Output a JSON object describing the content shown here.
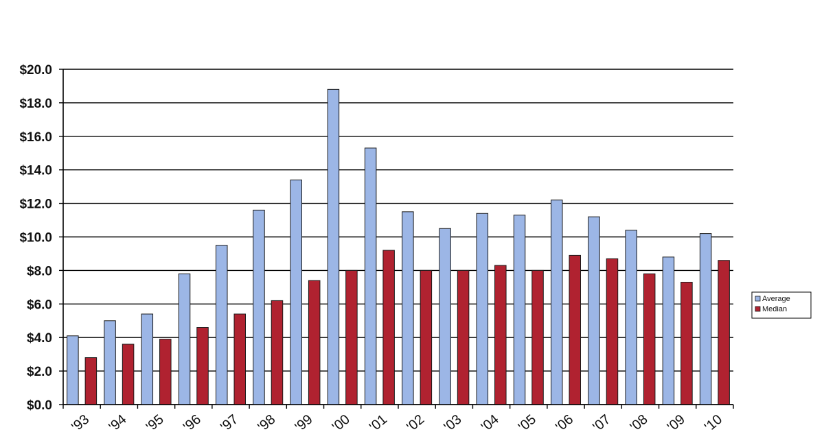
{
  "chart_data": {
    "type": "bar",
    "title": "",
    "categories": [
      "'93",
      "'94",
      "'95",
      "'96",
      "'97",
      "'98",
      "'99",
      "'00",
      "'01",
      "'02",
      "'03",
      "'04",
      "'05",
      "'06",
      "'07",
      "'08",
      "'09",
      "'10"
    ],
    "series": [
      {
        "name": "Average",
        "color": "#9cb6e6",
        "values": [
          4.1,
          5.0,
          5.4,
          7.8,
          9.5,
          11.6,
          13.4,
          18.8,
          15.3,
          11.5,
          10.5,
          11.4,
          11.3,
          12.2,
          11.2,
          10.4,
          8.8,
          10.2
        ]
      },
      {
        "name": "Median",
        "color": "#b02230",
        "values": [
          2.8,
          3.6,
          3.9,
          4.6,
          5.4,
          6.2,
          7.4,
          8.0,
          9.2,
          8.0,
          8.0,
          8.3,
          8.0,
          8.9,
          8.7,
          7.8,
          7.3,
          8.6
        ]
      }
    ],
    "ylim": [
      0,
      20
    ],
    "yticks": [
      "$0.0",
      "$2.0",
      "$4.0",
      "$6.0",
      "$8.0",
      "$10.0",
      "$12.0",
      "$14.0",
      "$16.0",
      "$18.0",
      "$20.0"
    ],
    "xlabel": "",
    "ylabel": "",
    "grid": true,
    "legend": "right"
  }
}
